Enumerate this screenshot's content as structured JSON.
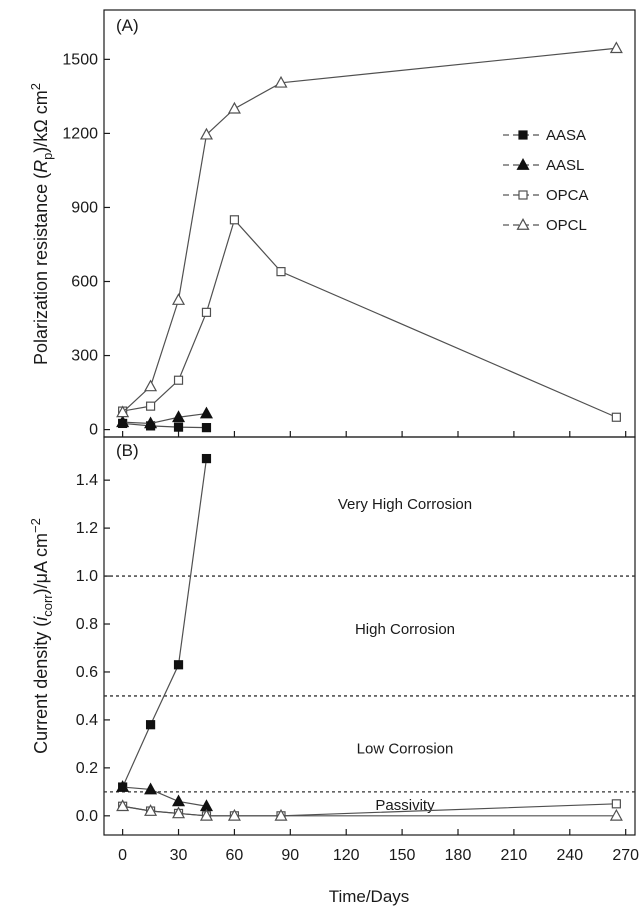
{
  "chart_data": {
    "type": "line",
    "xlabel": "Time/Days",
    "x_ticks": [
      0,
      30,
      60,
      90,
      120,
      150,
      180,
      210,
      240,
      270
    ],
    "xlim": [
      -10,
      275
    ],
    "colors": {
      "axis": "#1a1a1a",
      "series": "#505050",
      "filled": "#111111",
      "guide": "#333333"
    },
    "panels": [
      {
        "label": "(A)",
        "ylabel": "Polarization resistance (R_p)/kΩ cm^2",
        "ylabel_parts": {
          "pre": "Polarization resistance (",
          "italic": "R",
          "sub": "p",
          "mid": ")/kΩ cm",
          "sup": "2"
        },
        "ylim": [
          -30,
          1700
        ],
        "y_ticks": [
          0,
          300,
          600,
          900,
          1200,
          1500
        ],
        "legend_position": "right",
        "series": [
          {
            "name": "AASA",
            "marker": "square-filled",
            "x": [
              0,
              15,
              30,
              45
            ],
            "y": [
              25,
              15,
              10,
              8
            ]
          },
          {
            "name": "AASL",
            "marker": "triangle-filled",
            "x": [
              0,
              15,
              30,
              45
            ],
            "y": [
              30,
              25,
              50,
              65
            ]
          },
          {
            "name": "OPCA",
            "marker": "square-open",
            "x": [
              0,
              15,
              30,
              45,
              60,
              85,
              265
            ],
            "y": [
              75,
              95,
              200,
              475,
              850,
              640,
              50
            ]
          },
          {
            "name": "OPCL",
            "marker": "triangle-open",
            "x": [
              0,
              15,
              30,
              45,
              60,
              85,
              265
            ],
            "y": [
              70,
              175,
              525,
              1195,
              1300,
              1405,
              1545
            ]
          }
        ]
      },
      {
        "label": "(B)",
        "ylabel": "Current density (i_corr)/μA cm^−2",
        "ylabel_parts": {
          "pre": "Current density (",
          "italic": "i",
          "sub": "corr",
          "mid": ")/μA cm",
          "sup": "−2"
        },
        "ylim": [
          -0.08,
          1.58
        ],
        "y_ticks": [
          0.0,
          0.2,
          0.4,
          0.6,
          0.8,
          1.0,
          1.2,
          1.4
        ],
        "y_tick_labels": [
          "0.0",
          "0.2",
          "0.4",
          "0.6",
          "0.8",
          "1.0",
          "1.2",
          "1.4"
        ],
        "thresholds": [
          1.0,
          0.5,
          0.1
        ],
        "regions": [
          {
            "text": "Very High Corrosion",
            "y": 1.3
          },
          {
            "text": "High Corrosion",
            "y": 0.78
          },
          {
            "text": "Low Corrosion",
            "y": 0.28
          },
          {
            "text": "Passivity",
            "y": 0.045
          }
        ],
        "series": [
          {
            "name": "AASA",
            "marker": "square-filled",
            "x": [
              0,
              15,
              30,
              45
            ],
            "y": [
              0.12,
              0.38,
              0.63,
              1.49
            ]
          },
          {
            "name": "AASL",
            "marker": "triangle-filled",
            "x": [
              0,
              15,
              30,
              45
            ],
            "y": [
              0.12,
              0.11,
              0.06,
              0.04
            ]
          },
          {
            "name": "OPCA",
            "marker": "square-open",
            "x": [
              0,
              15,
              30,
              45,
              60,
              85,
              265
            ],
            "y": [
              0.04,
              0.02,
              0.01,
              0.0,
              0.0,
              0.0,
              0.05
            ]
          },
          {
            "name": "OPCL",
            "marker": "triangle-open",
            "x": [
              0,
              15,
              30,
              45,
              60,
              85,
              265
            ],
            "y": [
              0.04,
              0.02,
              0.01,
              0.0,
              0.0,
              0.0,
              0.0
            ]
          }
        ]
      }
    ]
  }
}
